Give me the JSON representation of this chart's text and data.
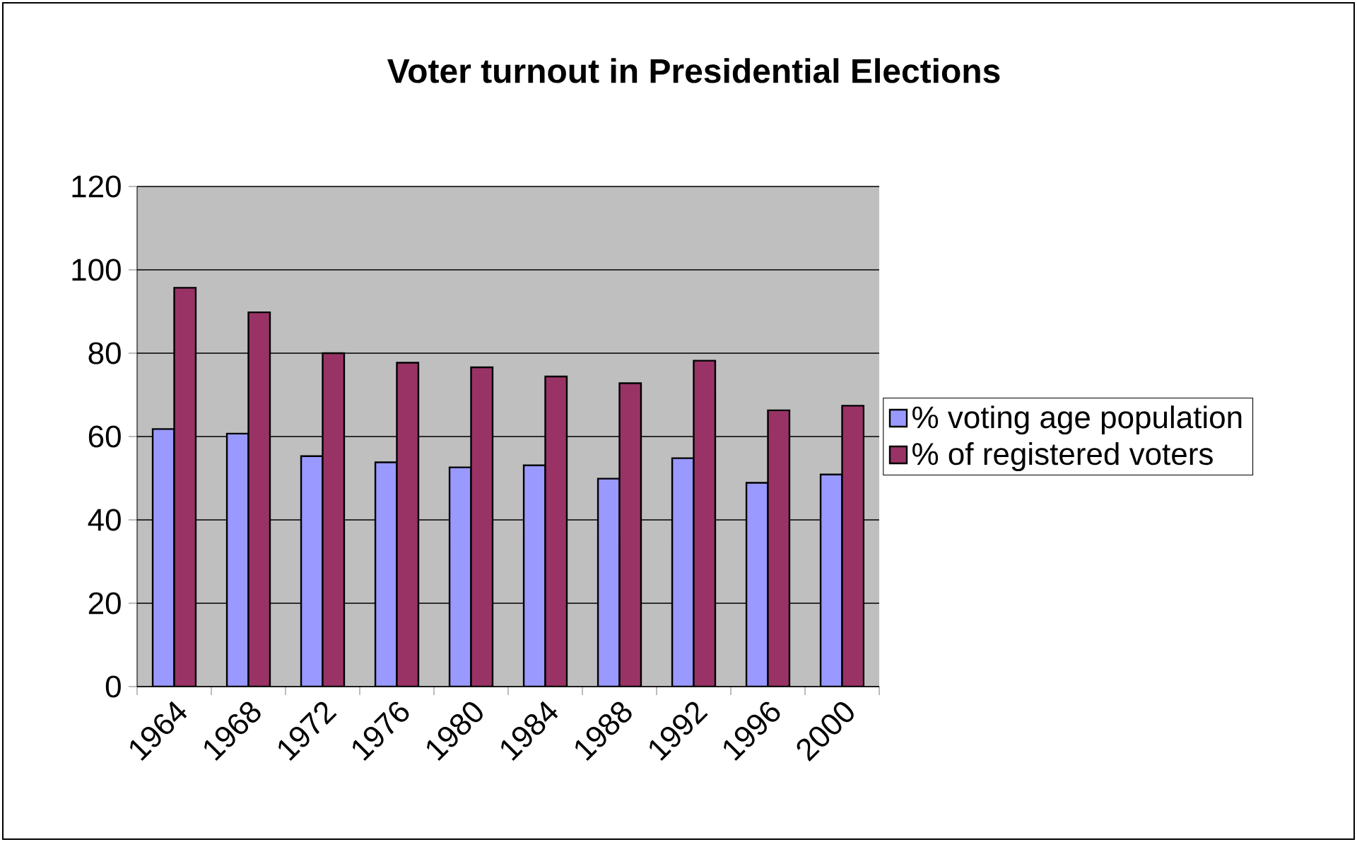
{
  "chart_data": {
    "type": "bar",
    "title": "Voter turnout in Presidential Elections",
    "categories": [
      "1964",
      "1968",
      "1972",
      "1976",
      "1980",
      "1984",
      "1988",
      "1992",
      "1996",
      "2000"
    ],
    "series": [
      {
        "name": "% voting age population",
        "color": "#9999ff",
        "values": [
          61.8,
          60.7,
          55.3,
          53.8,
          52.6,
          53.1,
          49.9,
          54.8,
          48.9,
          50.9
        ]
      },
      {
        "name": "% of registered voters",
        "color": "#993366",
        "values": [
          95.7,
          89.8,
          80,
          77.7,
          76.6,
          74.4,
          72.8,
          78.2,
          66.3,
          67.4
        ]
      }
    ],
    "ylim": [
      0,
      120
    ],
    "yticks": [
      0,
      20,
      40,
      60,
      80,
      100,
      120
    ],
    "grid": "y",
    "legend": "right"
  }
}
